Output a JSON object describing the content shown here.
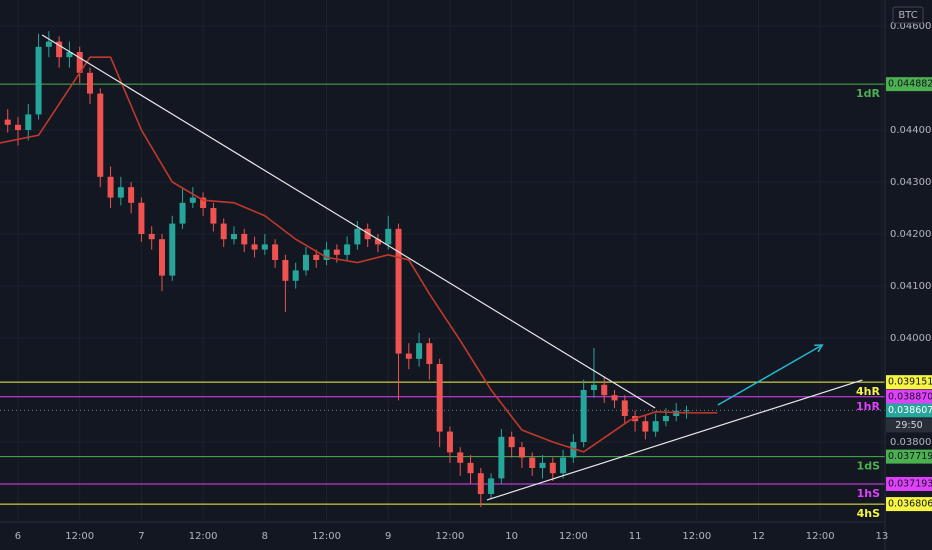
{
  "chart_data": {
    "type": "candlestick",
    "symbol": "BTC",
    "xlim": [
      -3.5,
      168.6
    ],
    "xticks": [
      {
        "value": 0,
        "label": "6"
      },
      {
        "value": 12,
        "label": "12:00"
      },
      {
        "value": 24,
        "label": "7"
      },
      {
        "value": 36,
        "label": "12:00"
      },
      {
        "value": 48,
        "label": "8"
      },
      {
        "value": 60,
        "label": "12:00"
      },
      {
        "value": 72,
        "label": "9"
      },
      {
        "value": 84,
        "label": "12:00"
      },
      {
        "value": 96,
        "label": "10"
      },
      {
        "value": 108,
        "label": "12:00"
      },
      {
        "value": 120,
        "label": "11"
      },
      {
        "value": 132,
        "label": "12:00"
      },
      {
        "value": 144,
        "label": "12"
      },
      {
        "value": 156,
        "label": "12:00"
      },
      {
        "value": 168,
        "label": "13"
      }
    ],
    "ylim": [
      0.0365,
      0.0465
    ],
    "yticks": [
      {
        "value": 0.046,
        "label": "0.046000"
      },
      {
        "value": 0.044,
        "label": "0.044000"
      },
      {
        "value": 0.043,
        "label": "0.043000"
      },
      {
        "value": 0.042,
        "label": "0.042000"
      },
      {
        "value": 0.041,
        "label": "0.041000"
      },
      {
        "value": 0.04,
        "label": "0.040000"
      },
      {
        "value": 0.038,
        "label": "0.038000"
      }
    ],
    "grid": true,
    "up_color": "#26a69a",
    "down_color": "#ef5350",
    "x": [
      -2,
      0,
      2,
      4,
      6,
      8,
      10,
      12,
      14,
      16,
      18,
      20,
      22,
      24,
      26,
      28,
      30,
      32,
      34,
      36,
      38,
      40,
      42,
      44,
      46,
      48,
      50,
      52,
      54,
      56,
      58,
      60,
      62,
      64,
      66,
      68,
      70,
      72,
      74,
      76,
      78,
      80,
      82,
      84,
      86,
      88,
      90,
      92,
      94,
      96,
      98,
      100,
      102,
      104,
      106,
      108,
      110,
      112,
      114,
      116,
      118,
      120,
      122,
      124,
      126,
      128,
      130
    ],
    "open": [
      0.0442,
      0.0441,
      0.044,
      0.0443,
      0.0456,
      0.0457,
      0.0454,
      0.0455,
      0.0451,
      0.0447,
      0.0431,
      0.0427,
      0.0429,
      0.0426,
      0.042,
      0.0419,
      0.0412,
      0.0422,
      0.0426,
      0.0427,
      0.0425,
      0.0422,
      0.0419,
      0.042,
      0.0418,
      0.0417,
      0.0418,
      0.0415,
      0.0411,
      0.0413,
      0.0416,
      0.0415,
      0.0417,
      0.0416,
      0.0418,
      0.0421,
      0.0419,
      0.0418,
      0.0421,
      0.0397,
      0.0396,
      0.0399,
      0.0395,
      0.0382,
      0.0378,
      0.0376,
      0.0374,
      0.037,
      0.0373,
      0.0381,
      0.0379,
      0.0377,
      0.0375,
      0.0376,
      0.0374,
      0.0377,
      0.038,
      0.039,
      0.0391,
      0.0389,
      0.0388,
      0.0385,
      0.0384,
      0.0382,
      0.0384,
      0.0385,
      0.0386
    ],
    "high": [
      0.0444,
      0.04425,
      0.0445,
      0.04585,
      0.0459,
      0.0458,
      0.0457,
      0.0456,
      0.0452,
      0.0448,
      0.0433,
      0.0431,
      0.043,
      0.0427,
      0.04215,
      0.042,
      0.04235,
      0.0429,
      0.0429,
      0.0428,
      0.0426,
      0.0423,
      0.04215,
      0.0421,
      0.04195,
      0.042,
      0.0419,
      0.0416,
      0.04145,
      0.04175,
      0.0417,
      0.04185,
      0.0418,
      0.04195,
      0.04225,
      0.0422,
      0.042,
      0.04235,
      0.0422,
      0.0399,
      0.0401,
      0.04,
      0.0396,
      0.0383,
      0.0379,
      0.03775,
      0.0375,
      0.0374,
      0.03825,
      0.0382,
      0.038,
      0.0378,
      0.03775,
      0.0377,
      0.03785,
      0.03815,
      0.0392,
      0.03981,
      0.03925,
      0.039,
      0.0389,
      0.0386,
      0.0385,
      0.03855,
      0.03865,
      0.03875,
      0.0387
    ],
    "low": [
      0.04395,
      0.0437,
      0.0438,
      0.0442,
      0.0454,
      0.0452,
      0.0452,
      0.0449,
      0.0445,
      0.0429,
      0.0425,
      0.04255,
      0.0424,
      0.04185,
      0.0417,
      0.0409,
      0.0411,
      0.0421,
      0.0425,
      0.04235,
      0.04205,
      0.04175,
      0.0418,
      0.04165,
      0.04155,
      0.0416,
      0.04135,
      0.0405,
      0.04095,
      0.0412,
      0.04135,
      0.0414,
      0.04145,
      0.0415,
      0.0417,
      0.04175,
      0.04165,
      0.0417,
      0.0388,
      0.0394,
      0.03945,
      0.0392,
      0.0379,
      0.0376,
      0.03735,
      0.0372,
      0.03675,
      0.0369,
      0.0372,
      0.0377,
      0.0375,
      0.03735,
      0.0373,
      0.03725,
      0.0373,
      0.0376,
      0.0379,
      0.03885,
      0.03875,
      0.03865,
      0.03835,
      0.0382,
      0.03805,
      0.0381,
      0.0383,
      0.0384,
      0.03845
    ],
    "close": [
      0.0441,
      0.044,
      0.0443,
      0.0456,
      0.0457,
      0.0454,
      0.0455,
      0.0451,
      0.0447,
      0.0431,
      0.0427,
      0.0429,
      0.0426,
      0.042,
      0.0419,
      0.0412,
      0.0422,
      0.0426,
      0.0427,
      0.0425,
      0.0422,
      0.0419,
      0.042,
      0.0418,
      0.0417,
      0.0418,
      0.0415,
      0.0411,
      0.0413,
      0.0416,
      0.0415,
      0.0417,
      0.0416,
      0.0418,
      0.0421,
      0.0419,
      0.0418,
      0.0421,
      0.0397,
      0.0396,
      0.0399,
      0.0395,
      0.0382,
      0.0378,
      0.0376,
      0.0374,
      0.037,
      0.0373,
      0.0381,
      0.0379,
      0.0377,
      0.0375,
      0.0376,
      0.0374,
      0.0377,
      0.038,
      0.039,
      0.0391,
      0.0389,
      0.0388,
      0.0385,
      0.0384,
      0.0382,
      0.0384,
      0.0385,
      0.0386,
      0.03861
    ],
    "moving_average": {
      "color": "#c0392b",
      "x": [
        -3.5,
        4,
        10,
        14,
        18,
        24,
        30,
        36,
        42,
        48,
        54,
        60,
        66,
        72,
        76,
        80,
        86,
        92,
        98,
        104,
        110,
        119,
        124,
        130,
        136
      ],
      "values": [
        0.04375,
        0.0439,
        0.0448,
        0.0454,
        0.0454,
        0.044,
        0.043,
        0.04265,
        0.0426,
        0.04235,
        0.0419,
        0.04155,
        0.04145,
        0.0416,
        0.0415,
        0.04085,
        0.03995,
        0.039,
        0.03823,
        0.038,
        0.03781,
        0.03842,
        0.03858,
        0.03856,
        0.03856
      ]
    },
    "trendlines": [
      {
        "color": "#e8e8e8",
        "x": [
          4.7,
          123.9
        ],
        "values": [
          0.045827,
          0.038654
        ]
      },
      {
        "color": "#e8e8e8",
        "x": [
          91.2,
          164.2
        ],
        "values": [
          0.036885,
          0.039192
        ]
      }
    ],
    "arrow": {
      "color": "#22b8cf",
      "x": [
        136.1,
        156.4
      ],
      "values": [
        0.038712,
        0.039865
      ]
    },
    "levels": [
      {
        "value": 0.044882,
        "value_label": "0.044882",
        "label": "1dR",
        "color": "#4caf50"
      },
      {
        "value": 0.039151,
        "value_label": "0.039151",
        "label": "4hR",
        "color": "#f5f542"
      },
      {
        "value": 0.03887,
        "value_label": "0.038870",
        "label": "1hR",
        "color": "#e040fb"
      },
      {
        "value": 0.037719,
        "value_label": "0.037719",
        "label": "1dS",
        "color": "#4caf50"
      },
      {
        "value": 0.037193,
        "value_label": "0.037193",
        "label": "1hS",
        "color": "#e040fb"
      },
      {
        "value": 0.036806,
        "value_label": "0.036806",
        "label": "4hS",
        "color": "#f5f542"
      }
    ],
    "current_price": {
      "value": 0.038607,
      "value_label": "0.038607",
      "countdown": "29:50",
      "color": "#26a69a"
    }
  }
}
